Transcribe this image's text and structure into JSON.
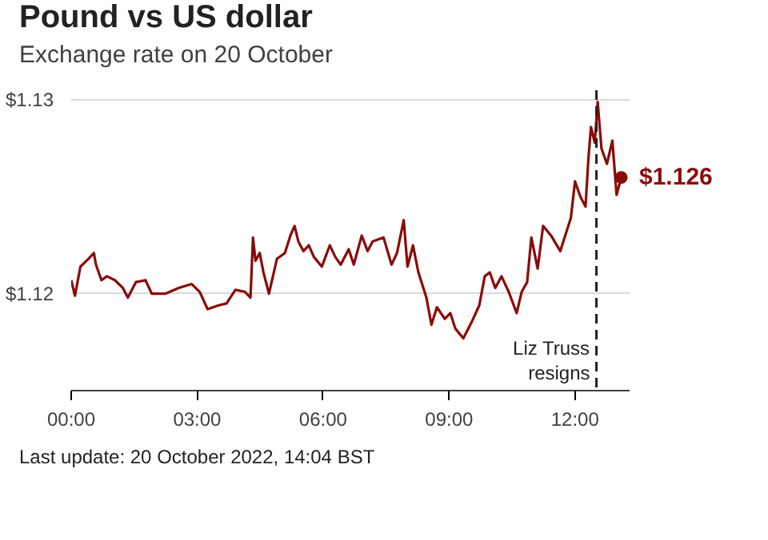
{
  "chart_data": {
    "type": "line",
    "title": "Pound vs US dollar",
    "subtitle": "Exchange rate on 20 October",
    "x": [
      0,
      0.09,
      0.22,
      0.41,
      0.54,
      0.59,
      0.72,
      0.85,
      1.04,
      1.23,
      1.35,
      1.54,
      1.77,
      1.92,
      2.24,
      2.56,
      2.87,
      3.06,
      3.25,
      3.51,
      3.7,
      3.91,
      4.14,
      4.27,
      4.33,
      4.39,
      4.49,
      4.58,
      4.71,
      4.9,
      5.09,
      5.22,
      5.32,
      5.41,
      5.53,
      5.66,
      5.78,
      5.97,
      6.16,
      6.29,
      6.42,
      6.61,
      6.73,
      6.92,
      7.06,
      7.18,
      7.44,
      7.63,
      7.76,
      7.92,
      8.01,
      8.14,
      8.27,
      8.46,
      8.58,
      8.71,
      8.9,
      9.03,
      9.15,
      9.34,
      9.53,
      9.72,
      9.85,
      9.97,
      10.1,
      10.25,
      10.42,
      10.61,
      10.73,
      10.86,
      10.96,
      11.11,
      11.24,
      11.43,
      11.65,
      11.81,
      11.9,
      12.0,
      12.13,
      12.25,
      12.32,
      12.38,
      12.47,
      12.54,
      12.63,
      12.76,
      12.89,
      12.99,
      13.1
    ],
    "series": [
      {
        "color": "#8b0a0a",
        "values": [
          1.1207,
          1.1199,
          1.1214,
          1.1218,
          1.1221,
          1.1215,
          1.1207,
          1.1209,
          1.1207,
          1.1203,
          1.1198,
          1.1206,
          1.1207,
          1.12,
          1.12,
          1.1203,
          1.1205,
          1.1201,
          1.1192,
          1.1194,
          1.1195,
          1.1202,
          1.1201,
          1.1198,
          1.1229,
          1.1217,
          1.1221,
          1.1211,
          1.12,
          1.1218,
          1.1221,
          1.123,
          1.1235,
          1.1227,
          1.1222,
          1.1225,
          1.1219,
          1.1214,
          1.1225,
          1.1219,
          1.1215,
          1.1223,
          1.1215,
          1.123,
          1.1222,
          1.1227,
          1.1229,
          1.1215,
          1.1221,
          1.1238,
          1.1214,
          1.1225,
          1.1211,
          1.1198,
          1.1184,
          1.1193,
          1.1187,
          1.119,
          1.1182,
          1.1177,
          1.1185,
          1.1194,
          1.1209,
          1.1211,
          1.1203,
          1.1209,
          1.1201,
          1.119,
          1.1201,
          1.1206,
          1.1229,
          1.1213,
          1.1235,
          1.123,
          1.1222,
          1.1233,
          1.1239,
          1.1258,
          1.125,
          1.1245,
          1.127,
          1.1286,
          1.1278,
          1.1299,
          1.1275,
          1.1267,
          1.1279,
          1.1251,
          1.126
        ]
      }
    ],
    "xlim": [
      0,
      13.3
    ],
    "ylim": [
      1.115,
      1.1305
    ],
    "xticks": [
      {
        "value": 0,
        "label": "00:00"
      },
      {
        "value": 3,
        "label": "03:00"
      },
      {
        "value": 6,
        "label": "06:00"
      },
      {
        "value": 9,
        "label": "09:00"
      },
      {
        "value": 12,
        "label": "12:00"
      }
    ],
    "yticks": [
      {
        "value": 1.12,
        "label": "$1.12"
      },
      {
        "value": 1.13,
        "label": "$1.13"
      }
    ],
    "grid": "y",
    "marker": "none",
    "line_style": "solid",
    "ref_lines": [
      {
        "axis": "x",
        "value": 12.51,
        "label": "Liz Truss\nresigns",
        "color": "#222222",
        "line_style": "dashed"
      }
    ],
    "annotations": [
      {
        "text": "$1.126",
        "x": 13.1,
        "y": 1.126
      },
      "Last update: 20 October 2022, 14:04 BST"
    ]
  }
}
